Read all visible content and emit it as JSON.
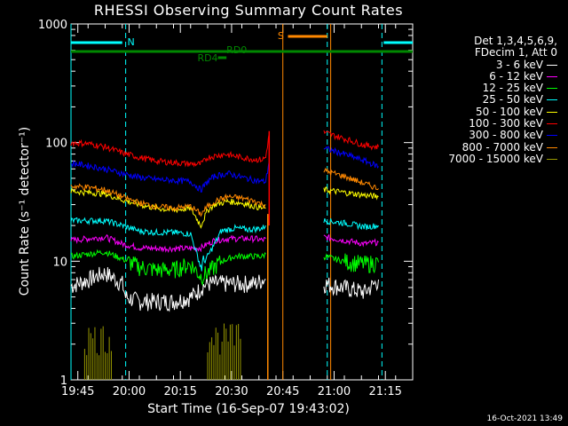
{
  "chart_data": {
    "type": "line",
    "title": "RHESSI Observing Summary Count Rates",
    "xlabel": "Start Time (16-Sep-07 19:43:02)",
    "ylabel": "Count Rate (s⁻¹ detector⁻¹)",
    "yscale": "log",
    "ylim": [
      1,
      1000
    ],
    "x_unit": "minutes after 19:43:02",
    "xlim": [
      0,
      100
    ],
    "x_ticks": [
      {
        "t": 2,
        "label": "19:45"
      },
      {
        "t": 17,
        "label": "20:00"
      },
      {
        "t": 32,
        "label": "20:15"
      },
      {
        "t": 47,
        "label": "20:30"
      },
      {
        "t": 62,
        "label": "20:45"
      },
      {
        "t": 77,
        "label": "21:00"
      },
      {
        "t": 92,
        "label": "21:15"
      }
    ],
    "y_ticks": [
      {
        "v": 1,
        "label": "1"
      },
      {
        "v": 10,
        "label": "10"
      },
      {
        "v": 100,
        "label": "100"
      },
      {
        "v": 1000,
        "label": "1000"
      }
    ],
    "legend_header": [
      "Det 1,3,4,5,6,9,",
      "FDecim 1, Att 0"
    ],
    "series": [
      {
        "name": "3 - 6 keV",
        "color": "#ffffff",
        "segments": [
          {
            "points": [
              [
                0,
                6.2
              ],
              [
                5,
                7.0
              ],
              [
                10,
                8.0
              ],
              [
                15,
                6.5
              ],
              [
                16,
                5.0
              ],
              [
                20,
                4.6
              ],
              [
                25,
                4.6
              ],
              [
                30,
                4.6
              ],
              [
                35,
                5.0
              ],
              [
                37,
                5.5
              ],
              [
                38,
                6.0
              ],
              [
                40,
                6.5
              ],
              [
                44,
                6.5
              ],
              [
                48,
                6.5
              ],
              [
                54,
                6.5
              ],
              [
                56,
                7.0
              ],
              [
                57,
                7.0
              ]
            ]
          },
          {
            "points": [
              [
                74,
                6.5
              ],
              [
                80,
                6.0
              ],
              [
                86,
                5.5
              ],
              [
                89,
                6.5
              ],
              [
                90,
                7.0
              ]
            ]
          }
        ]
      },
      {
        "name": "6 - 12 keV",
        "color": "#ff00ff",
        "segments": [
          {
            "points": [
              [
                0,
                15
              ],
              [
                5,
                15.5
              ],
              [
                10,
                16
              ],
              [
                15,
                14
              ],
              [
                20,
                13
              ],
              [
                25,
                12.8
              ],
              [
                30,
                12.8
              ],
              [
                35,
                12.8
              ],
              [
                38,
                13
              ],
              [
                40,
                14
              ],
              [
                42,
                15
              ],
              [
                46,
                15.5
              ],
              [
                50,
                15.5
              ],
              [
                54,
                15.5
              ],
              [
                56,
                15
              ],
              [
                57,
                15.5
              ]
            ]
          },
          {
            "points": [
              [
                74,
                16
              ],
              [
                80,
                15
              ],
              [
                86,
                14
              ],
              [
                90,
                14.5
              ]
            ]
          }
        ]
      },
      {
        "name": "12 - 25 keV",
        "color": "#00ff00",
        "segments": [
          {
            "points": [
              [
                0,
                11
              ],
              [
                5,
                11.5
              ],
              [
                10,
                12
              ],
              [
                15,
                10.5
              ],
              [
                20,
                9
              ],
              [
                25,
                8.5
              ],
              [
                30,
                8.5
              ],
              [
                35,
                9.5
              ],
              [
                38,
                7.5
              ],
              [
                40,
                8
              ],
              [
                42,
                9
              ],
              [
                44,
                10
              ],
              [
                48,
                11
              ],
              [
                52,
                11
              ],
              [
                56,
                11
              ],
              [
                57,
                11.5
              ]
            ]
          },
          {
            "points": [
              [
                74,
                11
              ],
              [
                80,
                10
              ],
              [
                86,
                9.5
              ],
              [
                90,
                9.8
              ]
            ]
          }
        ]
      },
      {
        "name": "25 - 50 keV",
        "color": "#00ffff",
        "segments": [
          {
            "points": [
              [
                0,
                22
              ],
              [
                5,
                22
              ],
              [
                10,
                22
              ],
              [
                15,
                20
              ],
              [
                20,
                18
              ],
              [
                25,
                17.5
              ],
              [
                30,
                17.5
              ],
              [
                35,
                17
              ],
              [
                38,
                9
              ],
              [
                40,
                11
              ],
              [
                42,
                14
              ],
              [
                44,
                18
              ],
              [
                48,
                19
              ],
              [
                52,
                18.5
              ],
              [
                56,
                19
              ],
              [
                57,
                20
              ]
            ]
          },
          {
            "points": [
              [
                74,
                22
              ],
              [
                80,
                21
              ],
              [
                86,
                19.5
              ],
              [
                90,
                20
              ]
            ]
          }
        ]
      },
      {
        "name": "50 - 100 keV",
        "color": "#ffff00",
        "segments": [
          {
            "points": [
              [
                0,
                39
              ],
              [
                5,
                38
              ],
              [
                10,
                37
              ],
              [
                15,
                33
              ],
              [
                20,
                30
              ],
              [
                25,
                28
              ],
              [
                30,
                27
              ],
              [
                35,
                28
              ],
              [
                38,
                20
              ],
              [
                40,
                27
              ],
              [
                42,
                30
              ],
              [
                46,
                32
              ],
              [
                50,
                31
              ],
              [
                54,
                29
              ],
              [
                56,
                28
              ],
              [
                57,
                28
              ]
            ]
          },
          {
            "points": [
              [
                74,
                40
              ],
              [
                80,
                38
              ],
              [
                86,
                36
              ],
              [
                90,
                35
              ]
            ]
          }
        ]
      },
      {
        "name": "100 - 300 keV",
        "color": "#ff0000",
        "segments": [
          {
            "points": [
              [
                0,
                100
              ],
              [
                5,
                98
              ],
              [
                10,
                92
              ],
              [
                15,
                82
              ],
              [
                20,
                75
              ],
              [
                25,
                70
              ],
              [
                30,
                68
              ],
              [
                35,
                66
              ],
              [
                38,
                66
              ],
              [
                39,
                70
              ],
              [
                40,
                75
              ],
              [
                45,
                80
              ],
              [
                50,
                75
              ],
              [
                54,
                72
              ],
              [
                56,
                72
              ],
              [
                57,
                75
              ],
              [
                58,
                120
              ]
            ]
          },
          {
            "points": [
              [
                74,
                122
              ],
              [
                80,
                108
              ],
              [
                86,
                95
              ],
              [
                90,
                92
              ]
            ]
          }
        ]
      },
      {
        "name": "300 - 800 keV",
        "color": "#0000ff",
        "segments": [
          {
            "points": [
              [
                0,
                67
              ],
              [
                5,
                64
              ],
              [
                10,
                60
              ],
              [
                15,
                55
              ],
              [
                20,
                51
              ],
              [
                25,
                49
              ],
              [
                30,
                48
              ],
              [
                35,
                47
              ],
              [
                38,
                40
              ],
              [
                40,
                47
              ],
              [
                42,
                52
              ],
              [
                46,
                55
              ],
              [
                50,
                51
              ],
              [
                54,
                48
              ],
              [
                56,
                47
              ],
              [
                57,
                47
              ],
              [
                58,
                70
              ]
            ]
          },
          {
            "points": [
              [
                74,
                90
              ],
              [
                80,
                80
              ],
              [
                86,
                70
              ],
              [
                90,
                63
              ]
            ]
          }
        ]
      },
      {
        "name": "800 - 7000 keV",
        "color": "#ff8800",
        "segments": [
          {
            "points": [
              [
                0,
                43
              ],
              [
                5,
                42
              ],
              [
                10,
                40
              ],
              [
                15,
                35
              ],
              [
                20,
                31
              ],
              [
                25,
                29
              ],
              [
                30,
                28
              ],
              [
                35,
                29
              ],
              [
                38,
                25
              ],
              [
                40,
                29
              ],
              [
                42,
                32
              ],
              [
                46,
                35
              ],
              [
                50,
                34
              ],
              [
                54,
                32
              ],
              [
                56,
                30
              ],
              [
                57,
                30
              ]
            ]
          },
          {
            "points": [
              [
                74,
                58
              ],
              [
                80,
                52
              ],
              [
                86,
                45
              ],
              [
                90,
                41
              ]
            ]
          }
        ]
      },
      {
        "name": "7000 - 15000 keV",
        "color": "#999900",
        "segments": []
      }
    ],
    "annotations": [
      {
        "text": "N",
        "color": "#00ffff"
      },
      {
        "text": "S",
        "color": "#ff8800"
      },
      {
        "text": "RD0",
        "color": "#008800"
      },
      {
        "text": "RD4",
        "color": "#008800"
      }
    ],
    "timestamp": "16-Oct-2021 13:49"
  }
}
